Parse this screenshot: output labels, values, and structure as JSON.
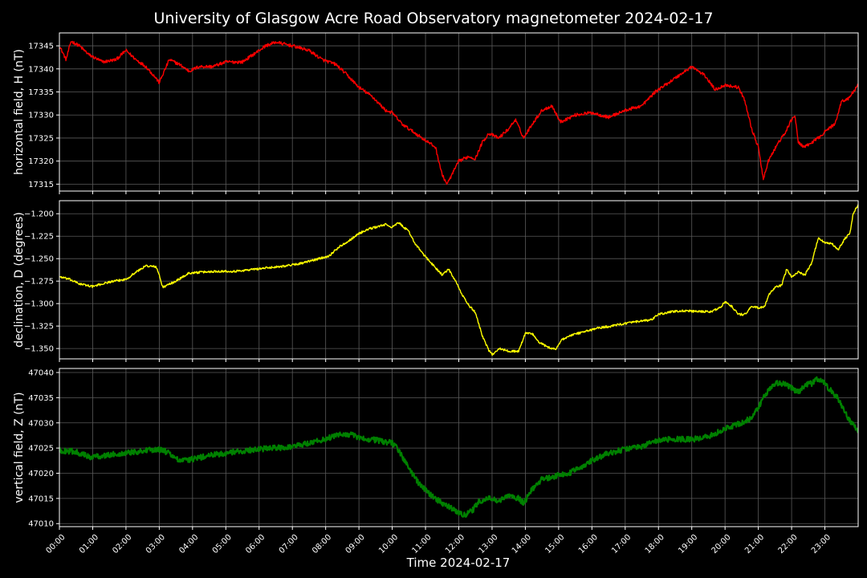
{
  "chart_data": {
    "type": "line",
    "title": "University of Glasgow Acre Road Observatory magnetometer 2024-02-17",
    "xlabel": "Time 2024-02-17",
    "x_ticks": [
      "00:00",
      "01:00",
      "02:00",
      "03:00",
      "04:00",
      "05:00",
      "06:00",
      "07:00",
      "08:00",
      "09:00",
      "10:00",
      "11:00",
      "12:00",
      "13:00",
      "14:00",
      "15:00",
      "16:00",
      "17:00",
      "18:00",
      "19:00",
      "20:00",
      "21:00",
      "22:00",
      "23:00"
    ],
    "xlim_hours": [
      0,
      24
    ],
    "grid": true,
    "colors": {
      "background": "#000000",
      "grid": "#5a5a5a",
      "axes": "#ffffff",
      "text": "#ffffff"
    },
    "panels": [
      {
        "ylabel": "horizontal field, H (nT)",
        "color": "#ff0000",
        "line_width": 1.4,
        "ylim": [
          17313.5,
          17347.8
        ],
        "y_ticks": [
          17315,
          17320,
          17325,
          17330,
          17335,
          17340,
          17345
        ],
        "y_tick_labels": [
          "17315",
          "17320",
          "17325",
          "17330",
          "17335",
          "17340",
          "17345"
        ],
        "noise": 0.35,
        "points": [
          [
            0,
            17345
          ],
          [
            0.2,
            17342
          ],
          [
            0.35,
            17346
          ],
          [
            0.6,
            17345
          ],
          [
            0.9,
            17343
          ],
          [
            1.3,
            17341.5
          ],
          [
            1.7,
            17342
          ],
          [
            2.0,
            17344
          ],
          [
            2.3,
            17342
          ],
          [
            2.6,
            17340.5
          ],
          [
            2.9,
            17338
          ],
          [
            3.0,
            17337
          ],
          [
            3.3,
            17342
          ],
          [
            3.6,
            17341
          ],
          [
            3.9,
            17339.5
          ],
          [
            4.2,
            17340.5
          ],
          [
            4.6,
            17340.5
          ],
          [
            5.0,
            17341.5
          ],
          [
            5.5,
            17341.5
          ],
          [
            5.8,
            17343
          ],
          [
            6.2,
            17345
          ],
          [
            6.5,
            17345.8
          ],
          [
            7.0,
            17345
          ],
          [
            7.5,
            17344
          ],
          [
            7.9,
            17342
          ],
          [
            8.3,
            17341
          ],
          [
            8.6,
            17339
          ],
          [
            9.0,
            17336
          ],
          [
            9.4,
            17334
          ],
          [
            9.8,
            17331
          ],
          [
            10.0,
            17330.5
          ],
          [
            10.3,
            17328
          ],
          [
            10.6,
            17326.5
          ],
          [
            11.0,
            17324.5
          ],
          [
            11.3,
            17323
          ],
          [
            11.5,
            17317
          ],
          [
            11.65,
            17315
          ],
          [
            12.0,
            17320
          ],
          [
            12.3,
            17321
          ],
          [
            12.5,
            17320.5
          ],
          [
            12.7,
            17324
          ],
          [
            12.9,
            17326
          ],
          [
            13.2,
            17325
          ],
          [
            13.5,
            17327
          ],
          [
            13.7,
            17329
          ],
          [
            13.95,
            17325
          ],
          [
            14.2,
            17328
          ],
          [
            14.5,
            17331
          ],
          [
            14.8,
            17332
          ],
          [
            15.05,
            17328.5
          ],
          [
            15.5,
            17330
          ],
          [
            16.0,
            17330.5
          ],
          [
            16.5,
            17329.5
          ],
          [
            17.0,
            17331
          ],
          [
            17.5,
            17332
          ],
          [
            17.9,
            17335
          ],
          [
            18.3,
            17337
          ],
          [
            18.7,
            17339
          ],
          [
            19.0,
            17340.5
          ],
          [
            19.4,
            17338.5
          ],
          [
            19.7,
            17335.5
          ],
          [
            20.0,
            17336.5
          ],
          [
            20.4,
            17336
          ],
          [
            20.6,
            17333
          ],
          [
            20.8,
            17327
          ],
          [
            21.0,
            17323
          ],
          [
            21.15,
            17316
          ],
          [
            21.3,
            17320
          ],
          [
            21.6,
            17324
          ],
          [
            21.8,
            17326
          ],
          [
            22.0,
            17329
          ],
          [
            22.1,
            17330
          ],
          [
            22.2,
            17324
          ],
          [
            22.4,
            17323
          ],
          [
            22.6,
            17324
          ],
          [
            22.8,
            17325
          ],
          [
            23.1,
            17327
          ],
          [
            23.3,
            17328
          ],
          [
            23.5,
            17333
          ],
          [
            23.7,
            17333.5
          ],
          [
            23.9,
            17335.5
          ],
          [
            24.0,
            17336.5
          ]
        ]
      },
      {
        "ylabel": "declination, D (degrees)",
        "color": "#ffff00",
        "line_width": 1.4,
        "ylim": [
          -1.3615,
          -1.1855
        ],
        "y_ticks": [
          -1.35,
          -1.325,
          -1.3,
          -1.275,
          -1.25,
          -1.225,
          -1.2
        ],
        "y_tick_labels": [
          "−1.350",
          "−1.325",
          "−1.300",
          "−1.275",
          "−1.250",
          "−1.225",
          "−1.200"
        ],
        "noise": 0.0012,
        "points": [
          [
            0,
            -1.27
          ],
          [
            0.3,
            -1.273
          ],
          [
            0.6,
            -1.278
          ],
          [
            1.0,
            -1.281
          ],
          [
            1.5,
            -1.276
          ],
          [
            2.0,
            -1.273
          ],
          [
            2.3,
            -1.265
          ],
          [
            2.6,
            -1.258
          ],
          [
            2.9,
            -1.259
          ],
          [
            3.0,
            -1.268
          ],
          [
            3.1,
            -1.282
          ],
          [
            3.5,
            -1.275
          ],
          [
            3.9,
            -1.266
          ],
          [
            4.3,
            -1.265
          ],
          [
            4.8,
            -1.264
          ],
          [
            5.3,
            -1.264
          ],
          [
            5.8,
            -1.262
          ],
          [
            6.3,
            -1.26
          ],
          [
            6.8,
            -1.258
          ],
          [
            7.3,
            -1.255
          ],
          [
            7.8,
            -1.25
          ],
          [
            8.1,
            -1.247
          ],
          [
            8.4,
            -1.237
          ],
          [
            8.7,
            -1.23
          ],
          [
            9.0,
            -1.222
          ],
          [
            9.3,
            -1.217
          ],
          [
            9.6,
            -1.214
          ],
          [
            9.8,
            -1.212
          ],
          [
            10.0,
            -1.215
          ],
          [
            10.2,
            -1.21
          ],
          [
            10.5,
            -1.22
          ],
          [
            10.7,
            -1.234
          ],
          [
            11.0,
            -1.248
          ],
          [
            11.3,
            -1.26
          ],
          [
            11.5,
            -1.268
          ],
          [
            11.7,
            -1.262
          ],
          [
            11.9,
            -1.275
          ],
          [
            12.1,
            -1.29
          ],
          [
            12.3,
            -1.302
          ],
          [
            12.5,
            -1.31
          ],
          [
            12.7,
            -1.335
          ],
          [
            12.9,
            -1.352
          ],
          [
            13.0,
            -1.357
          ],
          [
            13.2,
            -1.35
          ],
          [
            13.5,
            -1.353
          ],
          [
            13.8,
            -1.353
          ],
          [
            14.0,
            -1.333
          ],
          [
            14.2,
            -1.333
          ],
          [
            14.4,
            -1.343
          ],
          [
            14.7,
            -1.349
          ],
          [
            14.9,
            -1.351
          ],
          [
            15.1,
            -1.34
          ],
          [
            15.4,
            -1.335
          ],
          [
            15.8,
            -1.331
          ],
          [
            16.2,
            -1.327
          ],
          [
            16.6,
            -1.325
          ],
          [
            17.0,
            -1.322
          ],
          [
            17.4,
            -1.32
          ],
          [
            17.8,
            -1.318
          ],
          [
            18.0,
            -1.312
          ],
          [
            18.4,
            -1.309
          ],
          [
            18.8,
            -1.308
          ],
          [
            19.2,
            -1.309
          ],
          [
            19.6,
            -1.309
          ],
          [
            19.9,
            -1.303
          ],
          [
            20.0,
            -1.298
          ],
          [
            20.2,
            -1.303
          ],
          [
            20.4,
            -1.312
          ],
          [
            20.6,
            -1.312
          ],
          [
            20.8,
            -1.303
          ],
          [
            21.0,
            -1.305
          ],
          [
            21.2,
            -1.303
          ],
          [
            21.3,
            -1.291
          ],
          [
            21.5,
            -1.282
          ],
          [
            21.7,
            -1.28
          ],
          [
            21.85,
            -1.262
          ],
          [
            22.0,
            -1.27
          ],
          [
            22.2,
            -1.265
          ],
          [
            22.4,
            -1.268
          ],
          [
            22.6,
            -1.255
          ],
          [
            22.8,
            -1.227
          ],
          [
            23.0,
            -1.232
          ],
          [
            23.2,
            -1.233
          ],
          [
            23.4,
            -1.24
          ],
          [
            23.6,
            -1.228
          ],
          [
            23.75,
            -1.222
          ],
          [
            23.85,
            -1.2
          ],
          [
            24.0,
            -1.19
          ]
        ]
      },
      {
        "ylabel": "vertical field, Z (nT)",
        "color": "#008000",
        "line_width": 2.2,
        "ylim": [
          47009.4,
          47040.8
        ],
        "y_ticks": [
          47010,
          47015,
          47020,
          47025,
          47030,
          47035,
          47040
        ],
        "y_tick_labels": [
          "47010",
          "47015",
          "47020",
          "47025",
          "47030",
          "47035",
          "47040"
        ],
        "noise": 0.55,
        "points": [
          [
            0,
            47024.5
          ],
          [
            0.5,
            47024.3
          ],
          [
            0.9,
            47023.2
          ],
          [
            1.5,
            47023.6
          ],
          [
            2.0,
            47024.1
          ],
          [
            2.5,
            47024.4
          ],
          [
            3.0,
            47024.8
          ],
          [
            3.3,
            47024
          ],
          [
            3.6,
            47022.4
          ],
          [
            4.0,
            47022.8
          ],
          [
            4.5,
            47023.5
          ],
          [
            5.0,
            47024
          ],
          [
            5.5,
            47024.4
          ],
          [
            6.0,
            47024.8
          ],
          [
            6.5,
            47025
          ],
          [
            7.0,
            47025.3
          ],
          [
            7.5,
            47026
          ],
          [
            8.0,
            47026.8
          ],
          [
            8.5,
            47027.8
          ],
          [
            8.8,
            47027.6
          ],
          [
            9.0,
            47027
          ],
          [
            9.5,
            47026.6
          ],
          [
            10.0,
            47026
          ],
          [
            10.2,
            47024.5
          ],
          [
            10.5,
            47021
          ],
          [
            10.8,
            47018
          ],
          [
            11.1,
            47016
          ],
          [
            11.5,
            47014
          ],
          [
            11.8,
            47013
          ],
          [
            12.0,
            47012
          ],
          [
            12.2,
            47011.8
          ],
          [
            12.4,
            47012.5
          ],
          [
            12.6,
            47014.3
          ],
          [
            12.9,
            47015
          ],
          [
            13.2,
            47014.5
          ],
          [
            13.5,
            47015.5
          ],
          [
            13.8,
            47015
          ],
          [
            13.95,
            47014
          ],
          [
            14.2,
            47016.8
          ],
          [
            14.5,
            47018.8
          ],
          [
            15.0,
            47019.6
          ],
          [
            15.3,
            47019.9
          ],
          [
            15.6,
            47021
          ],
          [
            16.0,
            47022.6
          ],
          [
            16.5,
            47024
          ],
          [
            17.0,
            47024.8
          ],
          [
            17.5,
            47025.3
          ],
          [
            18.0,
            47026.6
          ],
          [
            18.5,
            47026.8
          ],
          [
            19.0,
            47026.7
          ],
          [
            19.5,
            47027.3
          ],
          [
            20.0,
            47028.8
          ],
          [
            20.5,
            47030
          ],
          [
            20.8,
            47031
          ],
          [
            21.0,
            47033
          ],
          [
            21.2,
            47035.5
          ],
          [
            21.4,
            47037.2
          ],
          [
            21.6,
            47038
          ],
          [
            21.8,
            47037.6
          ],
          [
            22.0,
            47037
          ],
          [
            22.2,
            47036
          ],
          [
            22.4,
            47037.5
          ],
          [
            22.6,
            47037.8
          ],
          [
            22.8,
            47038.8
          ],
          [
            23.0,
            47037.8
          ],
          [
            23.2,
            47036.2
          ],
          [
            23.4,
            47034.8
          ],
          [
            23.6,
            47032
          ],
          [
            23.8,
            47030
          ],
          [
            24.0,
            47028.5
          ]
        ]
      }
    ]
  }
}
